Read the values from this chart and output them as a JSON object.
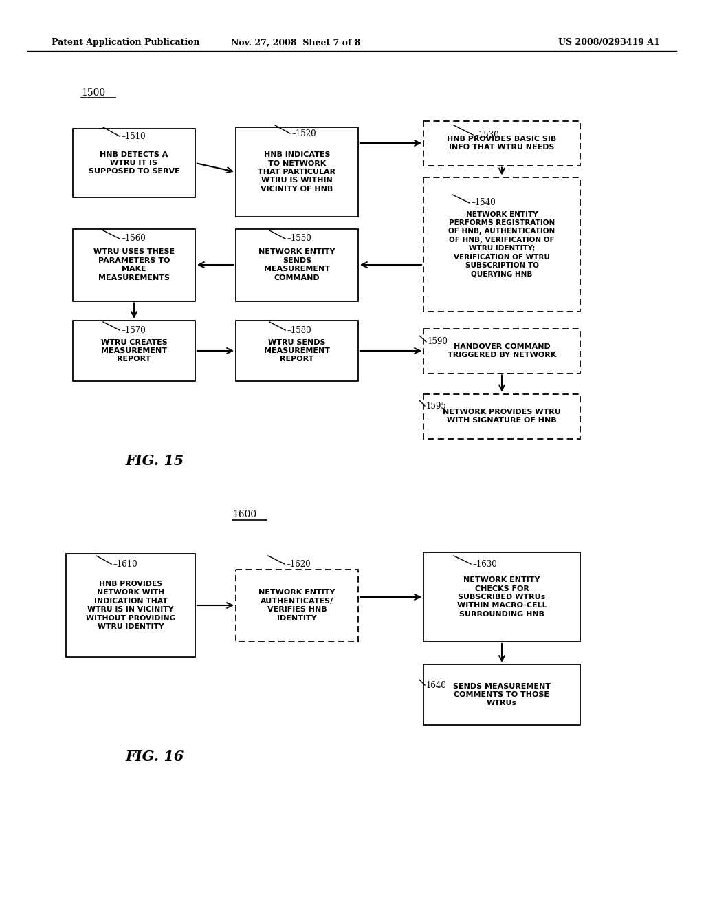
{
  "background_color": "#ffffff",
  "header_left": "Patent Application Publication",
  "header_center": "Nov. 27, 2008  Sheet 7 of 8",
  "header_right": "US 2008/0293419 A1",
  "fig15_caption": "FIG. 15",
  "fig16_caption": "FIG. 16"
}
